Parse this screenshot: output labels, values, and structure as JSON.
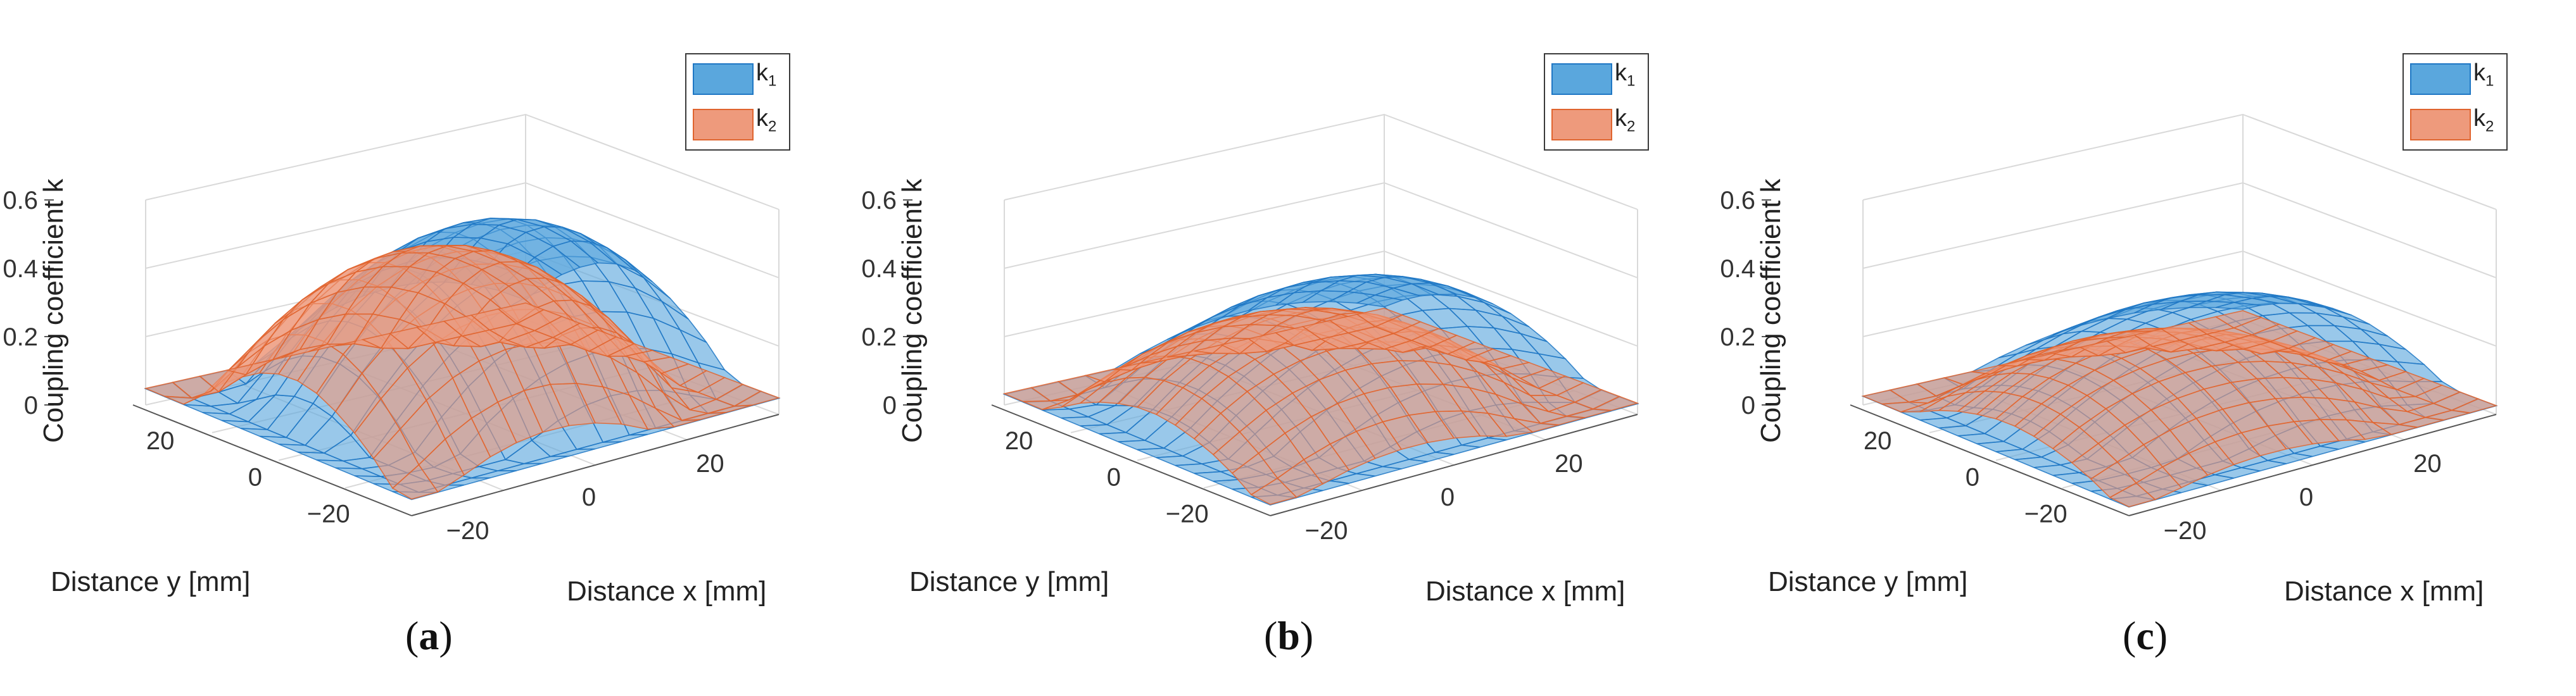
{
  "chart_data": [
    {
      "panel_label": "a",
      "type": "surface",
      "zlabel": "Coupling coefficient k",
      "xlabel": "Distance x [mm]",
      "ylabel": "Distance y [mm]",
      "zticks": [
        "0",
        "0.2",
        "0.4",
        "0.6"
      ],
      "xticks": [
        "−20",
        "0",
        "20"
      ],
      "yticks": [
        "20",
        "0",
        "−20"
      ],
      "zlim": [
        0,
        0.6
      ],
      "xlim": [
        -30,
        30
      ],
      "ylim": [
        -30,
        30
      ],
      "legend": [
        "k",
        "k"
      ],
      "legend_subscripts": [
        "1",
        "2"
      ],
      "series": [
        {
          "name": "k1",
          "peak": 0.48,
          "corner_near": 0.02,
          "corner_far": 0.35,
          "corner_left": 0.12,
          "corner_right": 0.05
        },
        {
          "name": "k2",
          "peak": 0.52,
          "corner_near": 0.02,
          "corner_far": 0.4,
          "corner_left": 0.08,
          "corner_right": 0.05
        }
      ]
    },
    {
      "panel_label": "b",
      "type": "surface",
      "zlabel": "Coupling coefficient k",
      "xlabel": "Distance x [mm]",
      "ylabel": "Distance y [mm]",
      "zticks": [
        "0",
        "0.2",
        "0.4",
        "0.6"
      ],
      "xticks": [
        "−20",
        "0",
        "20"
      ],
      "yticks": [
        "20",
        "0",
        "−20"
      ],
      "zlim": [
        0,
        0.6
      ],
      "xlim": [
        -30,
        30
      ],
      "ylim": [
        -30,
        30
      ],
      "legend": [
        "k",
        "k"
      ],
      "legend_subscripts": [
        "1",
        "2"
      ],
      "series": [
        {
          "name": "k1",
          "peak": 0.3,
          "corner_near": 0.02,
          "corner_far": 0.22,
          "corner_left": 0.08,
          "corner_right": 0.04
        },
        {
          "name": "k2",
          "peak": 0.32,
          "corner_near": 0.02,
          "corner_far": 0.26,
          "corner_left": 0.06,
          "corner_right": 0.04
        }
      ]
    },
    {
      "panel_label": "c",
      "type": "surface",
      "zlabel": "Coupling coefficient k",
      "xlabel": "Distance x [mm]",
      "ylabel": "Distance y [mm]",
      "zticks": [
        "0",
        "0.2",
        "0.4",
        "0.6"
      ],
      "xticks": [
        "−20",
        "0",
        "20"
      ],
      "yticks": [
        "20",
        "0",
        "−20"
      ],
      "zlim": [
        0,
        0.6
      ],
      "xlim": [
        -30,
        30
      ],
      "ylim": [
        -30,
        30
      ],
      "legend": [
        "k",
        "k"
      ],
      "legend_subscripts": [
        "1",
        "2"
      ],
      "series": [
        {
          "name": "k1",
          "peak": 0.24,
          "corner_near": 0.02,
          "corner_far": 0.18,
          "corner_left": 0.06,
          "corner_right": 0.03
        },
        {
          "name": "k2",
          "peak": 0.25,
          "corner_near": 0.02,
          "corner_far": 0.2,
          "corner_left": 0.05,
          "corner_right": 0.03
        }
      ]
    }
  ],
  "colors": {
    "k1_fill": "#5aa7dd",
    "k1_edge": "#1f77c4",
    "k2_fill": "#ee9a7c",
    "k2_edge": "#e0642e",
    "grid": "#d9d9d9",
    "axis": "#555555"
  }
}
